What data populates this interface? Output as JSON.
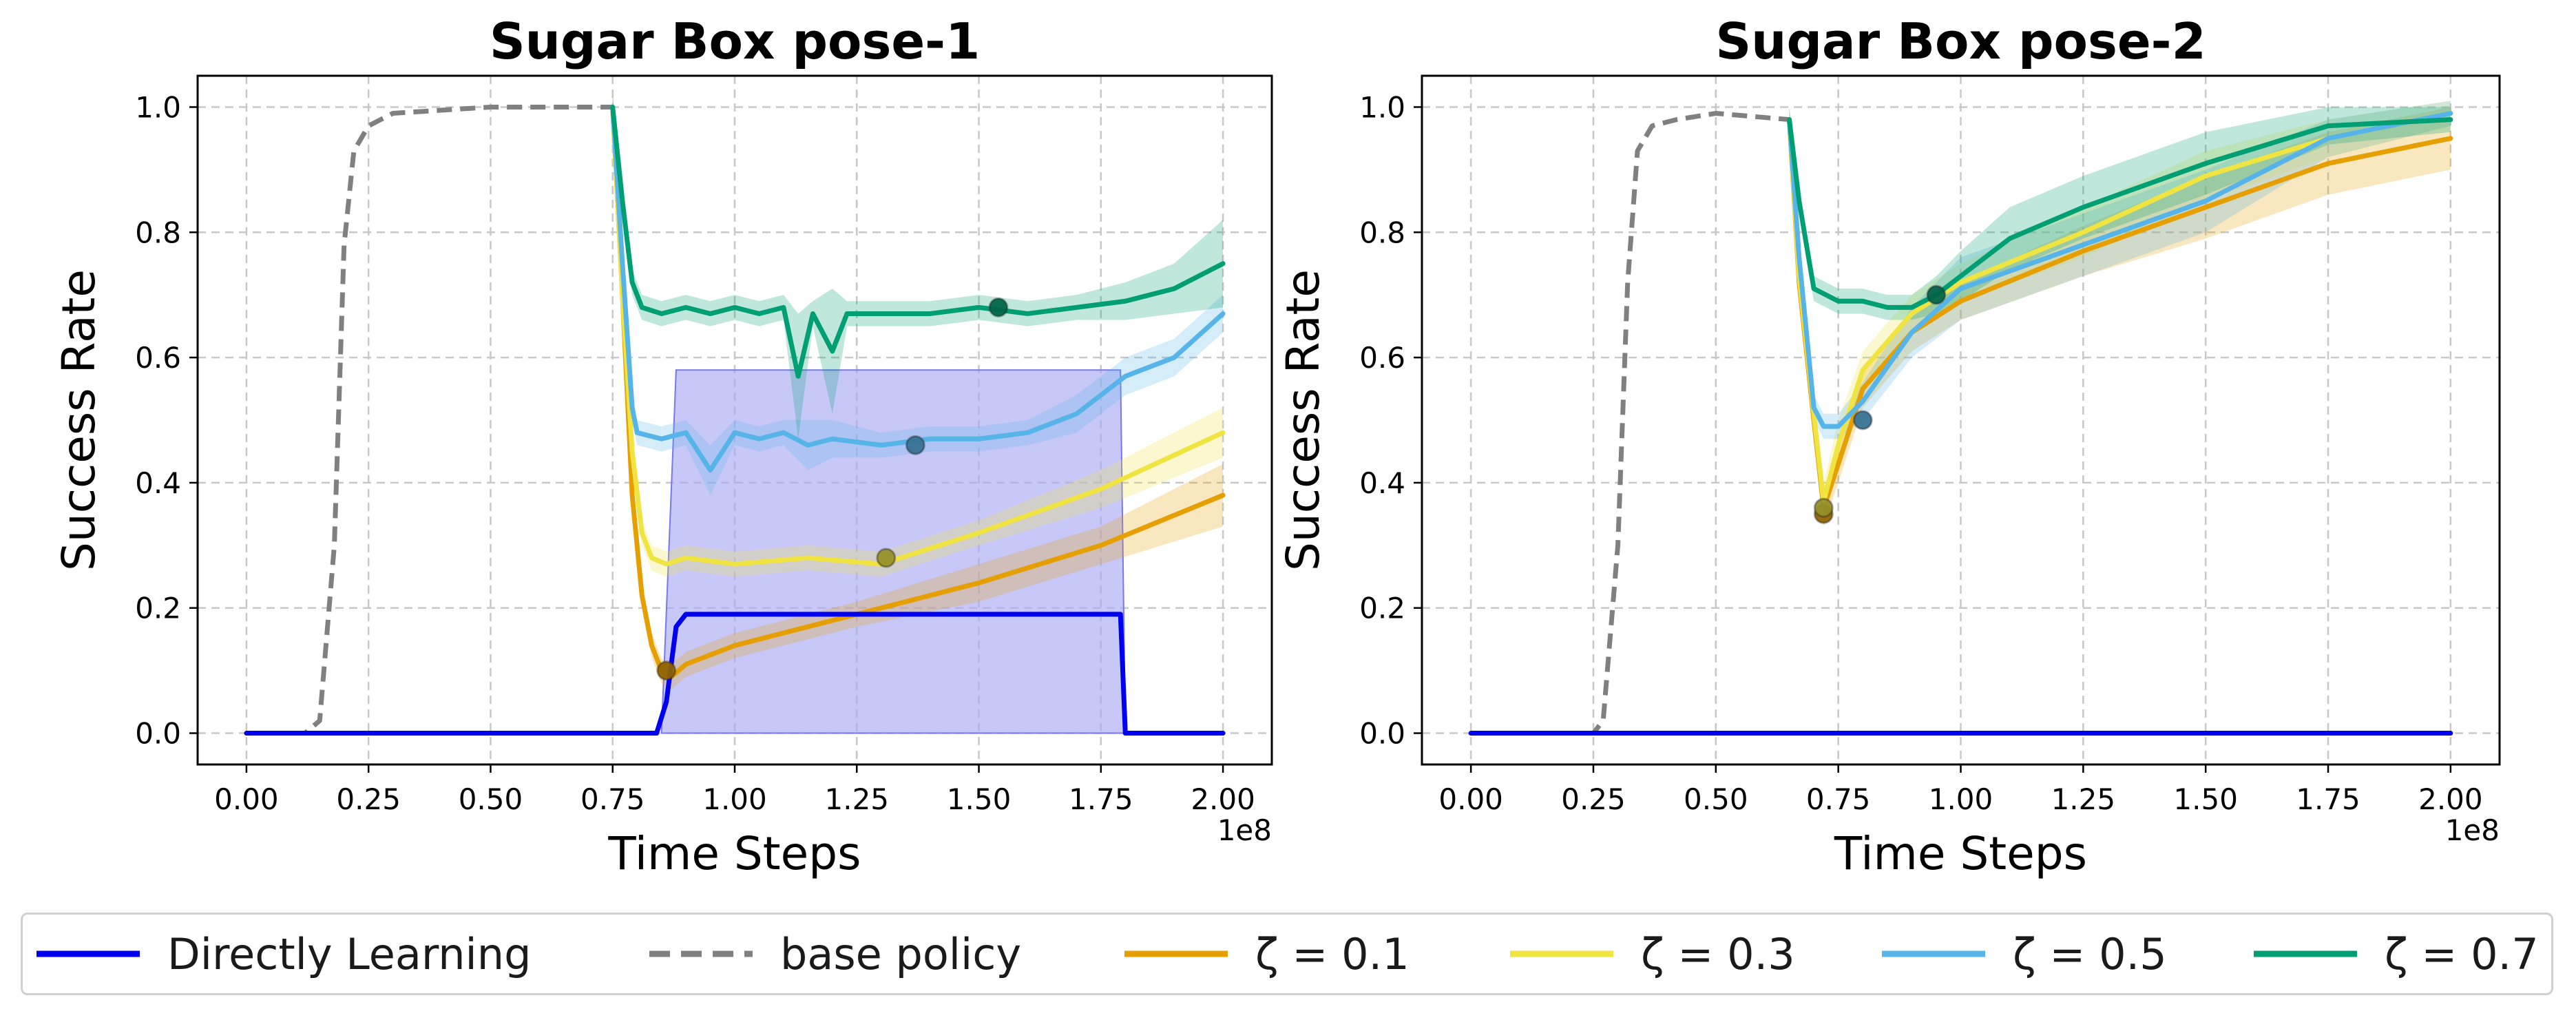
{
  "chart_data": [
    {
      "type": "line",
      "title": "Sugar Box pose-1",
      "xlabel": "Time Steps",
      "ylabel": "Success Rate",
      "x_scale_label": "1e8",
      "xlim": [
        -0.1,
        2.1
      ],
      "ylim": [
        -0.05,
        1.05
      ],
      "xticks": [
        "0.00",
        "0.25",
        "0.50",
        "0.75",
        "1.00",
        "1.25",
        "1.50",
        "1.75",
        "2.00"
      ],
      "yticks": [
        "0.0",
        "0.2",
        "0.4",
        "0.6",
        "0.8",
        "1.0"
      ],
      "grid": true,
      "series": [
        {
          "name": "base policy",
          "color": "#808080",
          "dashed": true,
          "x": [
            0.0,
            0.12,
            0.15,
            0.18,
            0.2,
            0.22,
            0.25,
            0.3,
            0.5,
            0.75
          ],
          "y": [
            0.0,
            0.0,
            0.02,
            0.3,
            0.78,
            0.93,
            0.97,
            0.99,
            1.0,
            1.0
          ]
        },
        {
          "name": "ζ = 0.1",
          "color": "#e69f00",
          "x": [
            0.75,
            0.77,
            0.79,
            0.81,
            0.83,
            0.85,
            0.87,
            0.9,
            1.0,
            1.25,
            1.5,
            1.75,
            2.0
          ],
          "y": [
            1.0,
            0.7,
            0.38,
            0.22,
            0.14,
            0.1,
            0.09,
            0.11,
            0.14,
            0.19,
            0.24,
            0.3,
            0.38
          ],
          "band": [
            0.03,
            0.03,
            0.03,
            0.02,
            0.02,
            0.02,
            0.02,
            0.02,
            0.02,
            0.02,
            0.03,
            0.03,
            0.05
          ],
          "marker": [
            0.86,
            0.1
          ]
        },
        {
          "name": "ζ = 0.3",
          "color": "#f0e442",
          "x": [
            0.75,
            0.77,
            0.79,
            0.81,
            0.83,
            0.86,
            0.9,
            1.0,
            1.15,
            1.3,
            1.5,
            1.75,
            2.0
          ],
          "y": [
            1.0,
            0.7,
            0.45,
            0.32,
            0.28,
            0.27,
            0.28,
            0.27,
            0.28,
            0.27,
            0.32,
            0.39,
            0.48
          ],
          "band": [
            0.02,
            0.02,
            0.02,
            0.02,
            0.02,
            0.02,
            0.02,
            0.02,
            0.02,
            0.02,
            0.02,
            0.03,
            0.04
          ],
          "marker": [
            1.31,
            0.28
          ]
        },
        {
          "name": "ζ = 0.5",
          "color": "#56b4e9",
          "x": [
            0.75,
            0.77,
            0.79,
            0.8,
            0.85,
            0.9,
            0.95,
            1.0,
            1.05,
            1.1,
            1.15,
            1.2,
            1.3,
            1.4,
            1.5,
            1.6,
            1.7,
            1.8,
            1.9,
            2.0
          ],
          "y": [
            1.0,
            0.75,
            0.52,
            0.48,
            0.47,
            0.48,
            0.42,
            0.48,
            0.47,
            0.48,
            0.46,
            0.47,
            0.46,
            0.47,
            0.47,
            0.48,
            0.51,
            0.57,
            0.6,
            0.67
          ],
          "band": [
            0.02,
            0.02,
            0.02,
            0.02,
            0.02,
            0.02,
            0.04,
            0.02,
            0.02,
            0.02,
            0.04,
            0.03,
            0.02,
            0.02,
            0.02,
            0.02,
            0.03,
            0.03,
            0.03,
            0.03
          ],
          "marker": [
            1.37,
            0.46
          ]
        },
        {
          "name": "ζ = 0.7",
          "color": "#009e73",
          "x": [
            0.75,
            0.77,
            0.79,
            0.81,
            0.85,
            0.9,
            0.95,
            1.0,
            1.05,
            1.1,
            1.13,
            1.16,
            1.2,
            1.23,
            1.3,
            1.4,
            1.5,
            1.6,
            1.7,
            1.8,
            1.9,
            2.0
          ],
          "y": [
            1.0,
            0.85,
            0.72,
            0.68,
            0.67,
            0.68,
            0.67,
            0.68,
            0.67,
            0.68,
            0.57,
            0.67,
            0.61,
            0.67,
            0.67,
            0.67,
            0.68,
            0.67,
            0.68,
            0.69,
            0.71,
            0.75
          ],
          "band": [
            0.02,
            0.02,
            0.02,
            0.02,
            0.02,
            0.02,
            0.02,
            0.02,
            0.02,
            0.02,
            0.1,
            0.02,
            0.1,
            0.02,
            0.02,
            0.02,
            0.02,
            0.02,
            0.02,
            0.03,
            0.04,
            0.07
          ],
          "marker": [
            1.54,
            0.68
          ]
        },
        {
          "name": "Directly Learning",
          "color": "#0000ee",
          "fill_color": "#aaaaf5",
          "x": [
            0.0,
            0.84,
            0.86,
            0.88,
            0.9,
            1.0,
            1.25,
            1.5,
            1.75,
            1.79,
            1.8,
            2.0
          ],
          "y": [
            0.0,
            0.0,
            0.05,
            0.17,
            0.19,
            0.19,
            0.19,
            0.19,
            0.19,
            0.19,
            0.0,
            0.0
          ],
          "area": {
            "x": [
              0.85,
              0.88,
              1.79,
              1.8
            ],
            "y": [
              0.0,
              0.58,
              0.58,
              0.0
            ]
          }
        }
      ]
    },
    {
      "type": "line",
      "title": "Sugar Box pose-2",
      "xlabel": "Time Steps",
      "ylabel": "Success Rate",
      "x_scale_label": "1e8",
      "xlim": [
        -0.1,
        2.1
      ],
      "ylim": [
        -0.05,
        1.05
      ],
      "xticks": [
        "0.00",
        "0.25",
        "0.50",
        "0.75",
        "1.00",
        "1.25",
        "1.50",
        "1.75",
        "2.00"
      ],
      "yticks": [
        "0.0",
        "0.2",
        "0.4",
        "0.6",
        "0.8",
        "1.0"
      ],
      "grid": true,
      "series": [
        {
          "name": "base policy",
          "color": "#808080",
          "dashed": true,
          "x": [
            0.0,
            0.25,
            0.27,
            0.3,
            0.32,
            0.34,
            0.37,
            0.42,
            0.5,
            0.65
          ],
          "y": [
            0.0,
            0.0,
            0.02,
            0.3,
            0.72,
            0.93,
            0.97,
            0.98,
            0.99,
            0.98
          ]
        },
        {
          "name": "ζ = 0.1",
          "color": "#e69f00",
          "x": [
            0.65,
            0.67,
            0.7,
            0.72,
            0.75,
            0.8,
            0.9,
            1.0,
            1.25,
            1.5,
            1.75,
            2.0
          ],
          "y": [
            0.98,
            0.72,
            0.5,
            0.36,
            0.43,
            0.55,
            0.64,
            0.69,
            0.77,
            0.84,
            0.91,
            0.95
          ],
          "band": [
            0.02,
            0.02,
            0.03,
            0.03,
            0.03,
            0.03,
            0.03,
            0.03,
            0.04,
            0.05,
            0.05,
            0.05
          ],
          "marker": [
            0.72,
            0.35
          ]
        },
        {
          "name": "ζ = 0.3",
          "color": "#f0e442",
          "x": [
            0.65,
            0.67,
            0.7,
            0.72,
            0.75,
            0.8,
            0.9,
            1.0,
            1.25,
            1.5,
            1.75,
            2.0
          ],
          "y": [
            0.98,
            0.73,
            0.51,
            0.37,
            0.46,
            0.58,
            0.67,
            0.72,
            0.8,
            0.89,
            0.95,
            0.99
          ],
          "band": [
            0.02,
            0.02,
            0.03,
            0.03,
            0.04,
            0.03,
            0.03,
            0.03,
            0.04,
            0.04,
            0.03,
            0.02
          ],
          "marker": [
            0.72,
            0.36
          ]
        },
        {
          "name": "ζ = 0.5",
          "color": "#56b4e9",
          "x": [
            0.65,
            0.67,
            0.7,
            0.72,
            0.75,
            0.8,
            0.9,
            1.0,
            1.25,
            1.5,
            1.75,
            2.0
          ],
          "y": [
            0.98,
            0.76,
            0.52,
            0.49,
            0.49,
            0.53,
            0.64,
            0.71,
            0.78,
            0.85,
            0.95,
            0.99
          ],
          "band": [
            0.02,
            0.02,
            0.02,
            0.02,
            0.02,
            0.03,
            0.04,
            0.05,
            0.05,
            0.05,
            0.03,
            0.02
          ],
          "marker": [
            0.8,
            0.5
          ]
        },
        {
          "name": "ζ = 0.7",
          "color": "#009e73",
          "x": [
            0.65,
            0.67,
            0.7,
            0.75,
            0.8,
            0.85,
            0.9,
            0.95,
            1.0,
            1.1,
            1.25,
            1.5,
            1.75,
            2.0
          ],
          "y": [
            0.98,
            0.85,
            0.71,
            0.69,
            0.69,
            0.68,
            0.68,
            0.7,
            0.73,
            0.79,
            0.84,
            0.91,
            0.97,
            0.98
          ],
          "band": [
            0.02,
            0.02,
            0.02,
            0.02,
            0.02,
            0.02,
            0.02,
            0.03,
            0.04,
            0.05,
            0.05,
            0.05,
            0.03,
            0.02
          ],
          "marker": [
            0.95,
            0.7
          ]
        },
        {
          "name": "Directly Learning",
          "color": "#0000ee",
          "x": [
            0.0,
            2.0
          ],
          "y": [
            0.0,
            0.0
          ]
        }
      ]
    }
  ],
  "legend": {
    "position": "bottom-center",
    "items": [
      {
        "label": "Directly Learning",
        "color": "#0000ee",
        "dashed": false
      },
      {
        "label": "base policy",
        "color": "#808080",
        "dashed": true
      },
      {
        "label": "ζ = 0.1",
        "color": "#e69f00",
        "dashed": false
      },
      {
        "label": "ζ = 0.3",
        "color": "#f0e442",
        "dashed": false
      },
      {
        "label": "ζ = 0.5",
        "color": "#56b4e9",
        "dashed": false
      },
      {
        "label": "ζ = 0.7",
        "color": "#009e73",
        "dashed": false
      }
    ]
  }
}
